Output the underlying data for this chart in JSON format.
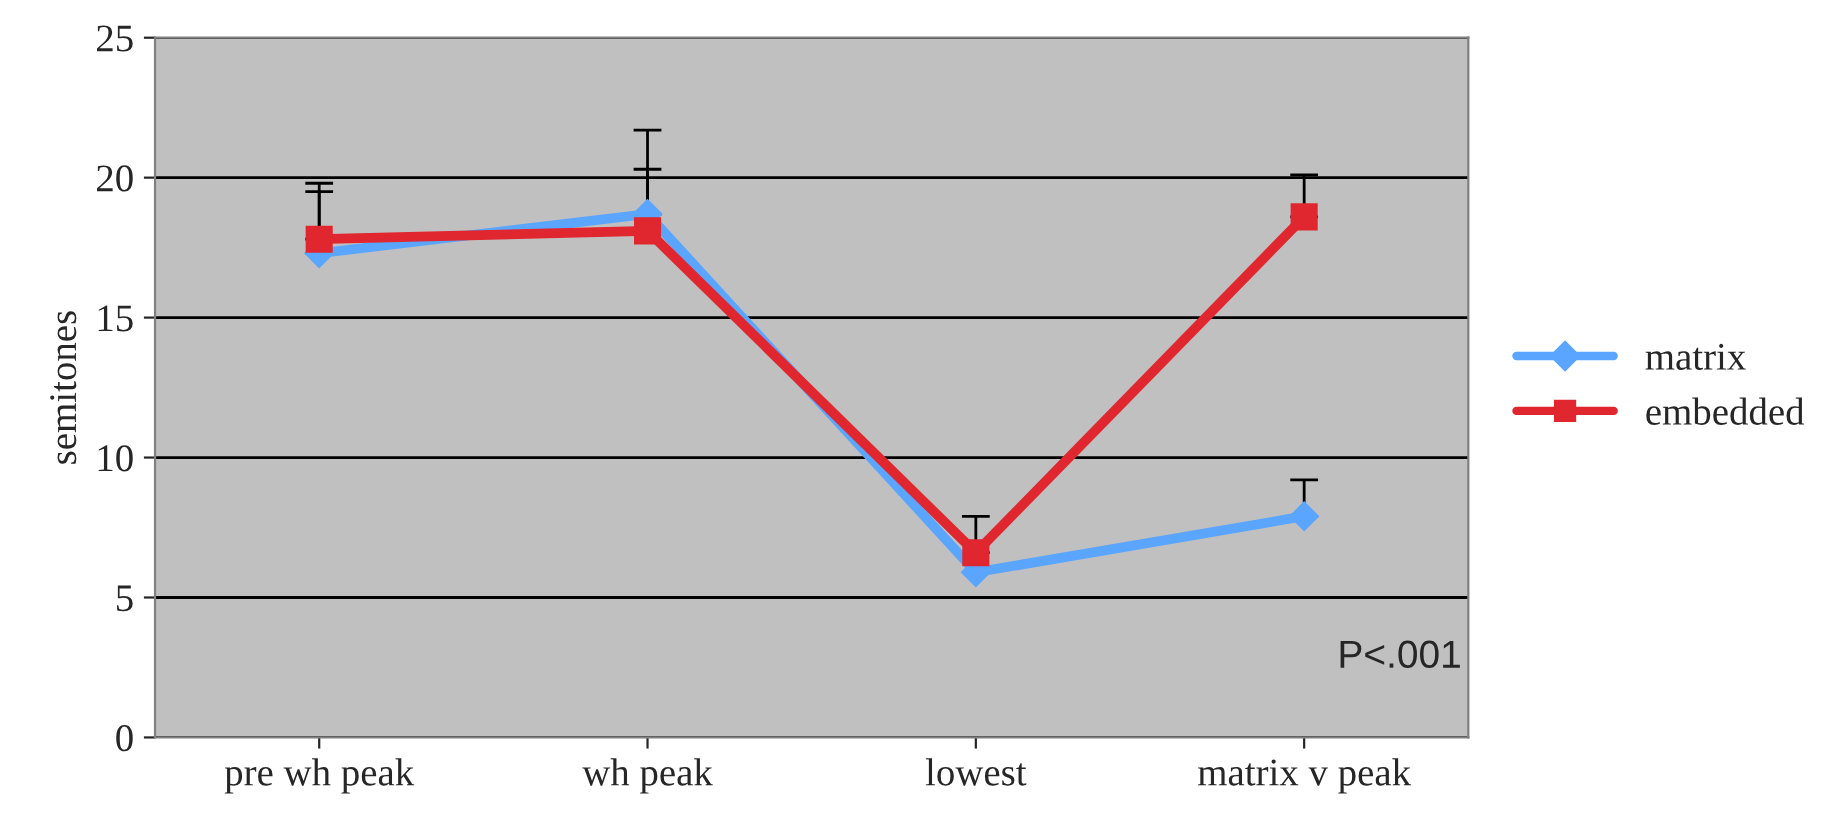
{
  "chart_data": {
    "type": "line",
    "ylabel": "semitones",
    "categories": [
      "pre wh peak",
      "wh peak",
      "lowest",
      "matrix v peak"
    ],
    "series": [
      {
        "name": "matrix",
        "color": "#5aa5ff",
        "marker": "diamond",
        "values": [
          17.3,
          18.7,
          5.9,
          7.9
        ],
        "errors": [
          [
            17.3,
            19.5
          ],
          [
            18.7,
            21.7
          ],
          null,
          [
            7.9,
            9.2
          ]
        ]
      },
      {
        "name": "embedded",
        "color": "#e0262e",
        "marker": "square",
        "values": [
          17.8,
          18.1,
          6.6,
          18.6
        ],
        "errors": [
          [
            17.8,
            19.8
          ],
          [
            18.1,
            20.3
          ],
          [
            6.6,
            7.9
          ],
          [
            18.6,
            20.1
          ]
        ]
      }
    ],
    "ylim": [
      0,
      25
    ],
    "yticks": [
      0,
      5,
      10,
      15,
      20,
      25
    ],
    "grid": "y",
    "legend": "right",
    "annotations": [
      "P<.001"
    ]
  }
}
